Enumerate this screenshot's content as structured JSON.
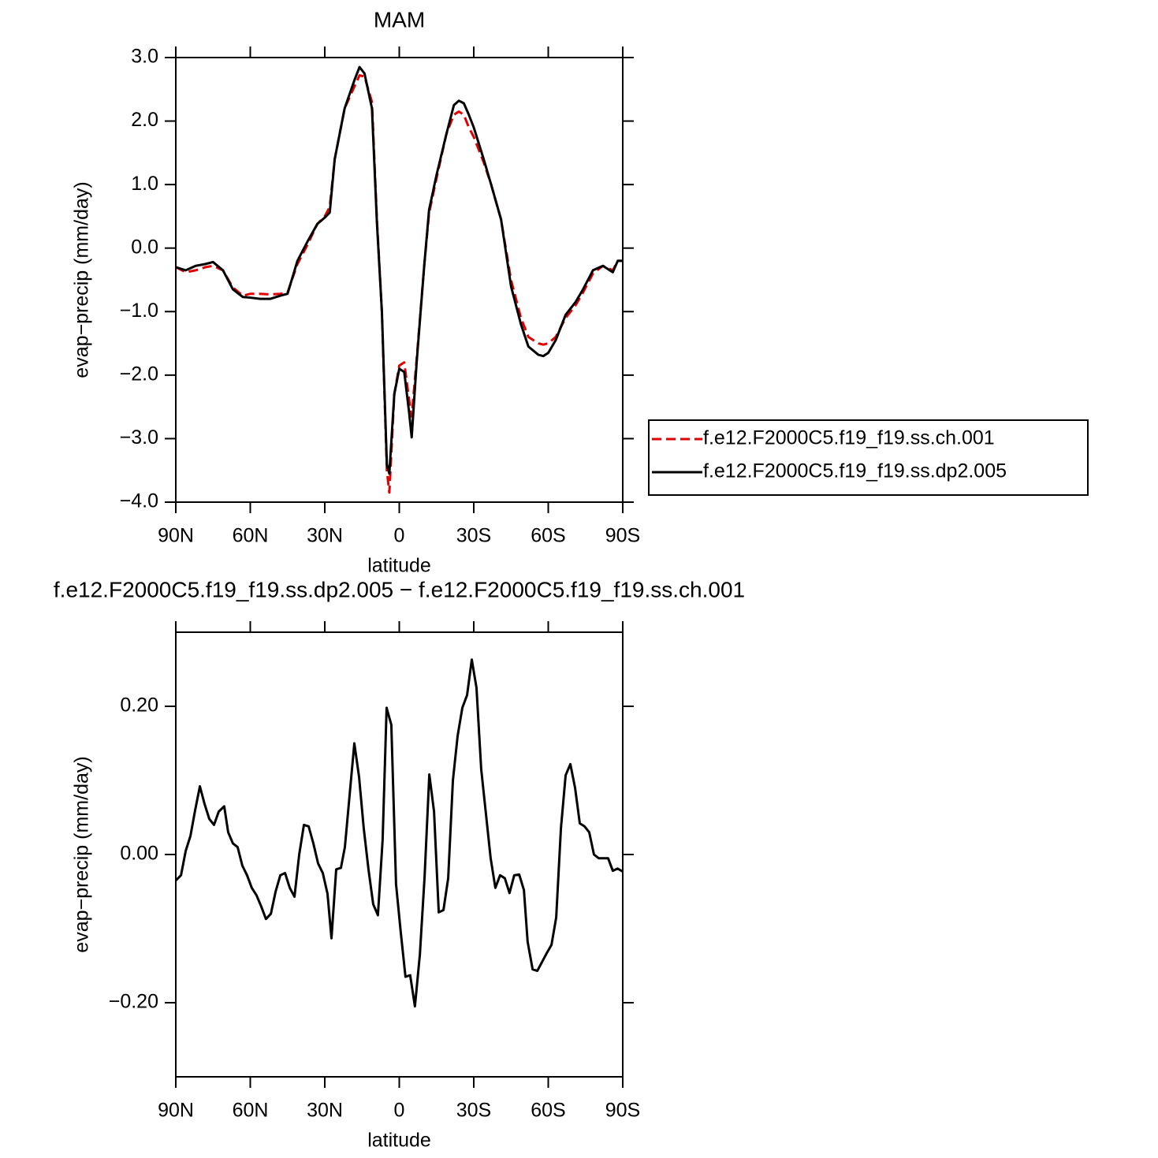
{
  "chart_data": [
    {
      "type": "line",
      "title": "MAM",
      "xlabel": "latitude",
      "ylabel": "evap−precip (mm/day)",
      "xlim": [
        90,
        -90
      ],
      "ylim": [
        -4,
        3
      ],
      "xticks": [
        {
          "value": 90,
          "label": "90N"
        },
        {
          "value": 60,
          "label": "60N"
        },
        {
          "value": 30,
          "label": "30N"
        },
        0,
        {
          "value": -30,
          "label": "30S"
        },
        {
          "value": -60,
          "label": "60S"
        },
        {
          "value": -90,
          "label": "90S"
        }
      ],
      "yticks": [
        {
          "value": -4,
          "label": "−4.0"
        },
        {
          "value": -3,
          "label": "−3.0"
        },
        {
          "value": -2,
          "label": "−2.0"
        },
        {
          "value": -1,
          "label": "−1.0"
        },
        {
          "value": 0,
          "label": "0.0"
        },
        {
          "value": 1,
          "label": "1.0"
        },
        {
          "value": 2,
          "label": "2.0"
        },
        {
          "value": 3,
          "label": "3.0"
        }
      ],
      "legend": "right",
      "x": [
        90,
        86,
        82,
        78,
        75,
        71,
        67,
        63,
        60,
        56,
        52,
        48,
        45,
        41,
        37,
        33,
        30,
        28,
        26,
        22,
        18,
        16,
        14,
        11,
        9,
        7,
        5,
        4,
        2,
        0,
        -2,
        -4,
        -5,
        -7,
        -10,
        -12,
        -15,
        -19,
        -22,
        -24,
        -26,
        -28,
        -30,
        -34,
        -37,
        -41,
        -45,
        -49,
        -52,
        -56,
        -58,
        -60,
        -63,
        -67,
        -71,
        -74,
        -78,
        -82,
        -86,
        -88,
        -90
      ],
      "series": [
        {
          "name": "f.e12.F2000C5.f19_f19.ss.ch.001",
          "color": "#e00000",
          "dashed": true,
          "values": [
            -0.3,
            -0.38,
            -0.35,
            -0.3,
            -0.28,
            -0.35,
            -0.62,
            -0.75,
            -0.72,
            -0.72,
            -0.73,
            -0.72,
            -0.7,
            -0.25,
            0.05,
            0.38,
            0.5,
            0.65,
            1.4,
            2.2,
            2.55,
            2.72,
            2.7,
            2.3,
            0.45,
            -1.0,
            -3.5,
            -3.85,
            -2.3,
            -1.85,
            -1.8,
            -2.4,
            -2.65,
            -1.75,
            -0.3,
            0.55,
            1.1,
            1.8,
            2.1,
            2.15,
            2.1,
            1.9,
            1.75,
            1.35,
            1.0,
            0.45,
            -0.5,
            -1.1,
            -1.4,
            -1.5,
            -1.52,
            -1.5,
            -1.4,
            -1.1,
            -0.9,
            -0.7,
            -0.4,
            -0.28,
            -0.35,
            -0.2,
            -0.2
          ]
        },
        {
          "name": "f.e12.F2000C5.f19_f19.ss.dp2.005",
          "color": "#000000",
          "dashed": false,
          "values": [
            -0.3,
            -0.35,
            -0.28,
            -0.25,
            -0.22,
            -0.35,
            -0.65,
            -0.77,
            -0.78,
            -0.8,
            -0.8,
            -0.75,
            -0.72,
            -0.2,
            0.1,
            0.38,
            0.48,
            0.56,
            1.4,
            2.2,
            2.65,
            2.85,
            2.75,
            2.2,
            0.4,
            -1.0,
            -3.4,
            -3.55,
            -2.3,
            -1.9,
            -1.95,
            -2.6,
            -2.98,
            -1.8,
            -0.3,
            0.6,
            1.15,
            1.8,
            2.25,
            2.32,
            2.28,
            2.1,
            1.9,
            1.4,
            1.0,
            0.45,
            -0.6,
            -1.2,
            -1.55,
            -1.68,
            -1.7,
            -1.65,
            -1.45,
            -1.05,
            -0.85,
            -0.65,
            -0.35,
            -0.28,
            -0.38,
            -0.2,
            -0.2
          ]
        }
      ]
    },
    {
      "type": "line",
      "title": "f.e12.F2000C5.f19_f19.ss.dp2.005 − f.e12.F2000C5.f19_f19.ss.ch.001",
      "xlabel": "latitude",
      "ylabel": "evap−precip (mm/day)",
      "xlim": [
        90,
        -90
      ],
      "ylim": [
        -0.3,
        0.3
      ],
      "xticks": [
        {
          "value": 90,
          "label": "90N"
        },
        {
          "value": 60,
          "label": "60N"
        },
        {
          "value": 30,
          "label": "30N"
        },
        0,
        {
          "value": -30,
          "label": "30S"
        },
        {
          "value": -60,
          "label": "60S"
        },
        {
          "value": -90,
          "label": "90S"
        }
      ],
      "yticks": [
        {
          "value": -0.2,
          "label": "−0.20"
        },
        {
          "value": 0,
          "label": "0.00"
        },
        {
          "value": 0.2,
          "label": "0.20"
        }
      ],
      "x": [
        90,
        87.9,
        86.0,
        84.1,
        82.2,
        80.3,
        78.4,
        76.5,
        74.6,
        72.7,
        70.5,
        68.9,
        67.0,
        65.1,
        63.2,
        61.3,
        59.4,
        57.5,
        55.6,
        53.7,
        51.7,
        49.8,
        47.9,
        46.0,
        44.1,
        42.2,
        40.3,
        38.4,
        36.5,
        34.6,
        32.7,
        30.8,
        28.9,
        27.3,
        25.4,
        23.5,
        21.9,
        20.0,
        18.1,
        16.2,
        14.3,
        12.4,
        10.5,
        8.6,
        6.7,
        5.1,
        3.2,
        1.3,
        -0.6,
        -2.5,
        -4.4,
        -6.3,
        -8.3,
        -10.2,
        -12.1,
        -14.0,
        -15.9,
        -17.8,
        -19.7,
        -21.6,
        -23.5,
        -25.4,
        -27.3,
        -29.2,
        -31.1,
        -33.0,
        -34.9,
        -36.8,
        -38.7,
        -40.6,
        -42.5,
        -44.4,
        -46.3,
        -48.3,
        -50.2,
        -51.7,
        -53.7,
        -55.6,
        -57.5,
        -59.4,
        -61.3,
        -63.2,
        -65.1,
        -67.0,
        -68.9,
        -70.8,
        -72.7,
        -74.6,
        -76.5,
        -78.4,
        -80.3,
        -82.2,
        -84.1,
        -86.0,
        -87.9,
        -90
      ],
      "series": [
        {
          "color": "#000000",
          "dashed": false,
          "values": [
            -0.035,
            -0.028,
            0.005,
            0.025,
            0.06,
            0.092,
            0.068,
            0.048,
            0.04,
            0.058,
            0.065,
            0.03,
            0.015,
            0.01,
            -0.015,
            -0.028,
            -0.045,
            -0.055,
            -0.07,
            -0.087,
            -0.08,
            -0.05,
            -0.028,
            -0.025,
            -0.045,
            -0.057,
            0.0,
            0.04,
            0.038,
            0.015,
            -0.012,
            -0.025,
            -0.053,
            -0.113,
            -0.02,
            -0.018,
            0.01,
            0.08,
            0.15,
            0.105,
            0.035,
            -0.02,
            -0.067,
            -0.082,
            0.02,
            0.198,
            0.175,
            -0.04,
            -0.105,
            -0.165,
            -0.163,
            -0.205,
            -0.135,
            -0.03,
            0.108,
            0.058,
            -0.078,
            -0.075,
            -0.032,
            0.1,
            0.16,
            0.198,
            0.215,
            0.263,
            0.225,
            0.115,
            0.055,
            -0.005,
            -0.045,
            -0.028,
            -0.032,
            -0.052,
            -0.028,
            -0.027,
            -0.048,
            -0.118,
            -0.155,
            -0.157,
            -0.145,
            -0.133,
            -0.122,
            -0.085,
            0.035,
            0.107,
            0.122,
            0.09,
            0.042,
            0.038,
            0.03,
            0.0,
            -0.005,
            -0.005,
            -0.005,
            -0.022,
            -0.019,
            -0.023
          ]
        }
      ]
    }
  ]
}
